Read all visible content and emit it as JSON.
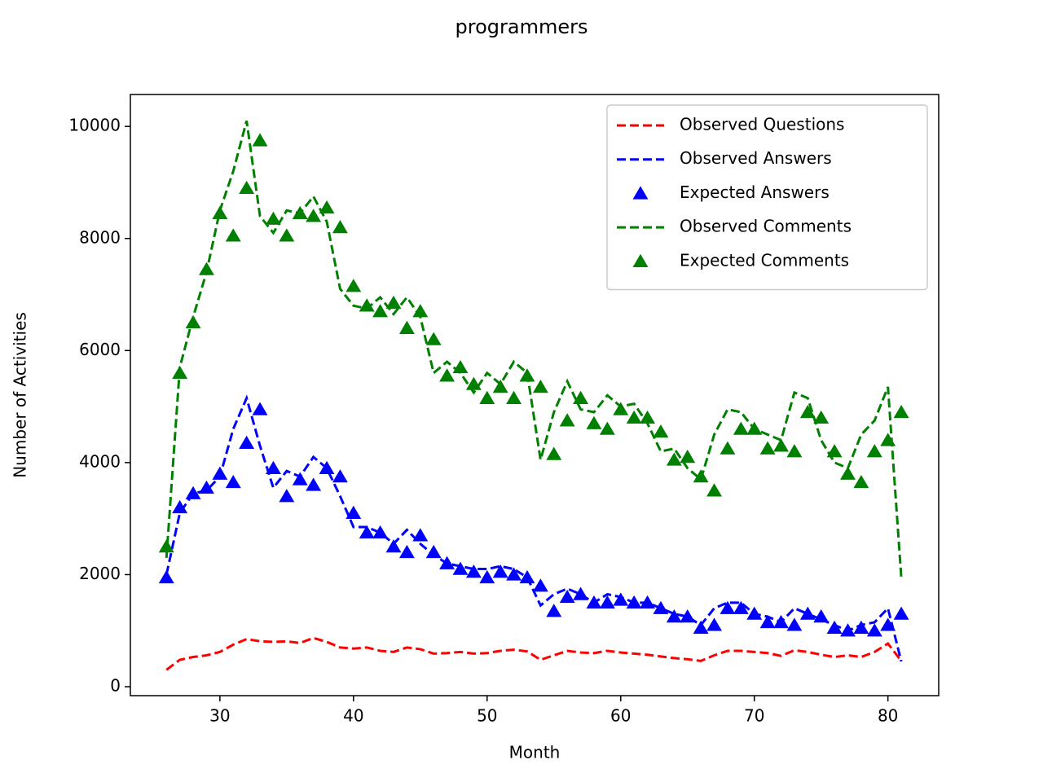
{
  "chart_data": {
    "type": "line",
    "title": "programmers",
    "x_label": "Month",
    "y_label": "Number of Activities",
    "x": [
      26,
      27,
      28,
      29,
      30,
      31,
      32,
      33,
      34,
      35,
      36,
      37,
      38,
      39,
      40,
      41,
      42,
      43,
      44,
      45,
      46,
      47,
      48,
      49,
      50,
      51,
      52,
      53,
      54,
      55,
      56,
      57,
      58,
      59,
      60,
      61,
      62,
      63,
      64,
      65,
      66,
      67,
      68,
      69,
      70,
      71,
      72,
      73,
      74,
      75,
      76,
      77,
      78,
      79,
      80,
      81
    ],
    "xlim": [
      23.3,
      83.8
    ],
    "xticks": [
      30,
      40,
      50,
      60,
      70,
      80
    ],
    "ylim": [
      -160,
      10570
    ],
    "yticks": [
      0,
      2000,
      4000,
      6000,
      8000,
      10000
    ],
    "legend": "upper right",
    "series": [
      {
        "name": "Observed Questions",
        "color": "#ff0000",
        "style": "dashed",
        "values": [
          300,
          480,
          530,
          560,
          620,
          750,
          850,
          810,
          800,
          810,
          780,
          870,
          800,
          700,
          680,
          700,
          640,
          620,
          700,
          670,
          590,
          600,
          620,
          590,
          600,
          640,
          660,
          630,
          480,
          560,
          640,
          610,
          600,
          640,
          610,
          590,
          570,
          540,
          510,
          490,
          460,
          560,
          640,
          640,
          620,
          600,
          550,
          650,
          620,
          570,
          530,
          560,
          530,
          620,
          770,
          460
        ]
      },
      {
        "name": "Observed Answers",
        "color": "#0000ff",
        "style": "dashed",
        "values": [
          2000,
          3100,
          3450,
          3500,
          3750,
          4600,
          5150,
          4300,
          3550,
          3850,
          3750,
          4100,
          3900,
          3400,
          2850,
          2850,
          2750,
          2550,
          2800,
          2550,
          2350,
          2200,
          2150,
          2100,
          2100,
          2150,
          2100,
          1950,
          1450,
          1650,
          1750,
          1650,
          1500,
          1650,
          1600,
          1500,
          1500,
          1400,
          1300,
          1250,
          1100,
          1400,
          1500,
          1500,
          1300,
          1250,
          1150,
          1400,
          1300,
          1200,
          1100,
          1000,
          1100,
          1150,
          1400,
          450
        ]
      },
      {
        "name": "Expected Answers",
        "color": "#0000ff",
        "style": "triangle",
        "values": [
          1950,
          3200,
          3450,
          3550,
          3800,
          3650,
          4350,
          4950,
          3900,
          3400,
          3700,
          3600,
          3900,
          3750,
          3100,
          2750,
          2750,
          2500,
          2400,
          2700,
          2400,
          2200,
          2100,
          2050,
          1950,
          2050,
          2000,
          1950,
          1800,
          1350,
          1600,
          1650,
          1500,
          1500,
          1550,
          1500,
          1500,
          1400,
          1250,
          1250,
          1050,
          1100,
          1400,
          1400,
          1300,
          1150,
          1150,
          1100,
          1300,
          1250,
          1050,
          1000,
          1050,
          1000,
          1100,
          1300
        ]
      },
      {
        "name": "Observed Comments",
        "color": "#008000",
        "style": "dashed",
        "values": [
          2300,
          5700,
          6600,
          7400,
          8500,
          9200,
          10100,
          8400,
          8100,
          8500,
          8450,
          8750,
          8300,
          7100,
          6800,
          6750,
          6950,
          6650,
          6950,
          6600,
          5600,
          5800,
          5600,
          5250,
          5600,
          5400,
          5800,
          5600,
          4050,
          4900,
          5450,
          4950,
          4900,
          5200,
          5000,
          5050,
          4700,
          4200,
          4250,
          3900,
          3700,
          4500,
          4950,
          4900,
          4600,
          4500,
          4400,
          5250,
          5150,
          4400,
          4000,
          3900,
          4500,
          4750,
          5350,
          1950
        ]
      },
      {
        "name": "Expected Comments",
        "color": "#008000",
        "style": "triangle",
        "values": [
          2500,
          5600,
          6500,
          7450,
          8450,
          8050,
          8900,
          9750,
          8350,
          8050,
          8450,
          8400,
          8550,
          8200,
          7150,
          6800,
          6700,
          6850,
          6400,
          6700,
          6200,
          5550,
          5700,
          5400,
          5150,
          5350,
          5150,
          5550,
          5350,
          4150,
          4750,
          5150,
          4700,
          4600,
          4950,
          4800,
          4800,
          4550,
          4050,
          4100,
          3750,
          3500,
          4250,
          4600,
          4600,
          4250,
          4300,
          4200,
          4900,
          4800,
          4200,
          3800,
          3650,
          4200,
          4400,
          4900
        ]
      }
    ]
  }
}
